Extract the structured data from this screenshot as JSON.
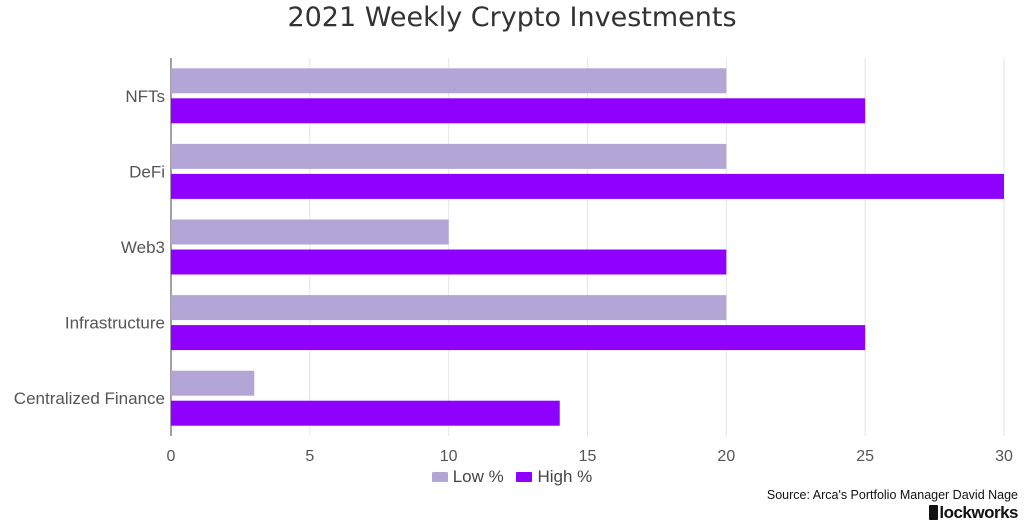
{
  "title": "2021 Weekly Crypto Investments",
  "source": "Source: Arca's Portfolio Manager David Nage",
  "brand": "lockworks",
  "legend": [
    {
      "label": "Low %",
      "color": "#b3a5d6"
    },
    {
      "label": "High %",
      "color": "#8f00ff"
    }
  ],
  "chart_data": {
    "type": "bar",
    "orientation": "horizontal",
    "title": "2021 Weekly Crypto Investments",
    "categories": [
      "NFTs",
      "DeFi",
      "Web3",
      "Infrastructure",
      "Centralized Finance"
    ],
    "series": [
      {
        "name": "Low %",
        "color": "#b3a5d6",
        "values": [
          20,
          20,
          10,
          20,
          3
        ]
      },
      {
        "name": "High %",
        "color": "#8f00ff",
        "values": [
          25,
          30,
          20,
          25,
          14
        ]
      }
    ],
    "xlim": [
      0,
      30
    ],
    "xticks": [
      0,
      5,
      10,
      15,
      20,
      25,
      30
    ],
    "grid": true,
    "legend_position": "bottom"
  }
}
